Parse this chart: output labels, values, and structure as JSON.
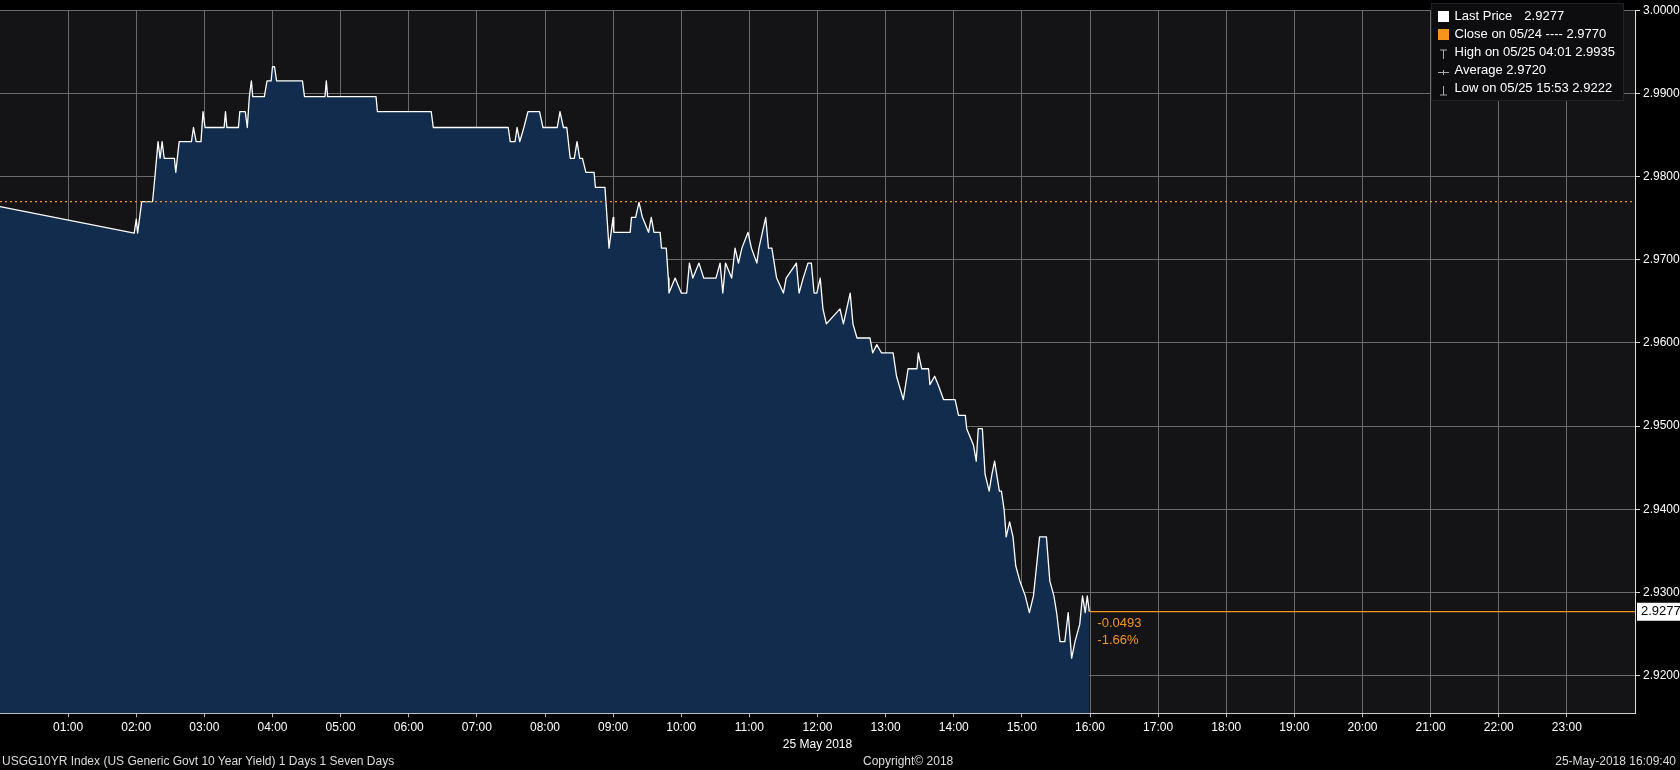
{
  "chart_data": {
    "type": "area",
    "title": "USGG10YR Index (US Generic Govt 10 Year Yield) 1 Days 1 Seven Days",
    "xlabel": "25 May 2018",
    "x": [
      0,
      1.97,
      2.0,
      2.02,
      2.08,
      2.24,
      2.28,
      2.32,
      2.35,
      2.38,
      2.41,
      2.56,
      2.58,
      2.63,
      2.81,
      2.84,
      2.88,
      2.95,
      2.98,
      3.01,
      3.29,
      3.31,
      3.33,
      3.5,
      3.52,
      3.6,
      3.63,
      3.66,
      3.69,
      3.71,
      3.88,
      3.92,
      3.98,
      4.0,
      4.03,
      4.06,
      4.44,
      4.47,
      4.77,
      4.79,
      4.81,
      5.52,
      5.54,
      6.33,
      6.36,
      7.46,
      7.49,
      7.56,
      7.59,
      7.63,
      7.69,
      7.75,
      7.92,
      7.97,
      8.18,
      8.22,
      8.27,
      8.32,
      8.37,
      8.43,
      8.47,
      8.51,
      8.55,
      8.6,
      8.72,
      8.74,
      8.88,
      8.91,
      8.94,
      9.0,
      9.01,
      9.25,
      9.27,
      9.33,
      9.38,
      9.43,
      9.52,
      9.56,
      9.6,
      9.69,
      9.71,
      9.78,
      9.81,
      9.82,
      9.91,
      10.0,
      10.08,
      10.12,
      10.17,
      10.26,
      10.33,
      10.51,
      10.57,
      10.61,
      10.65,
      10.74,
      10.79,
      10.84,
      10.89,
      10.98,
      11.03,
      11.11,
      11.14,
      11.24,
      11.28,
      11.33,
      11.4,
      11.5,
      11.54,
      11.69,
      11.73,
      11.79,
      11.86,
      11.91,
      11.95,
      11.99,
      12.04,
      12.08,
      12.13,
      12.33,
      12.38,
      12.48,
      12.52,
      12.58,
      12.77,
      12.81,
      12.87,
      12.94,
      13.11,
      13.16,
      13.26,
      13.33,
      13.46,
      13.48,
      13.53,
      13.63,
      13.65,
      13.72,
      13.77,
      13.85,
      14.02,
      14.07,
      14.17,
      14.19,
      14.29,
      14.33,
      14.36,
      14.42,
      14.46,
      14.52,
      14.56,
      14.6,
      14.63,
      14.67,
      14.7,
      14.74,
      14.77,
      14.82,
      14.87,
      14.91,
      14.97,
      15.05,
      15.11,
      15.17,
      15.26,
      15.36,
      15.41,
      15.47,
      15.51,
      15.56,
      15.63,
      15.68,
      15.73,
      15.78,
      15.85,
      15.89,
      15.93,
      15.96,
      15.99
    ],
    "series": [
      {
        "name": "Last Price",
        "color": "#ffffff",
        "values": [
          2.9764,
          2.9732,
          2.9749,
          2.9732,
          2.977,
          2.977,
          2.9805,
          2.9842,
          2.9822,
          2.9842,
          2.9822,
          2.9822,
          2.9805,
          2.9842,
          2.9842,
          2.9859,
          2.9842,
          2.9842,
          2.9878,
          2.9859,
          2.9859,
          2.9878,
          2.9859,
          2.9859,
          2.9878,
          2.9878,
          2.9859,
          2.9896,
          2.9915,
          2.9896,
          2.9896,
          2.9915,
          2.9915,
          2.9932,
          2.9932,
          2.9915,
          2.9915,
          2.9896,
          2.9896,
          2.9915,
          2.9896,
          2.9896,
          2.9878,
          2.9878,
          2.9859,
          2.9859,
          2.9842,
          2.9842,
          2.9859,
          2.9842,
          2.9859,
          2.9878,
          2.9878,
          2.9859,
          2.9859,
          2.9878,
          2.9859,
          2.9859,
          2.9822,
          2.9822,
          2.9842,
          2.9822,
          2.9822,
          2.9805,
          2.9805,
          2.9787,
          2.9787,
          2.9751,
          2.9714,
          2.9751,
          2.9733,
          2.9733,
          2.9751,
          2.9751,
          2.9769,
          2.9751,
          2.9733,
          2.9751,
          2.9733,
          2.9733,
          2.9714,
          2.9714,
          2.9678,
          2.966,
          2.9678,
          2.966,
          2.966,
          2.9696,
          2.9678,
          2.9696,
          2.9678,
          2.9678,
          2.9696,
          2.966,
          2.9696,
          2.9678,
          2.9714,
          2.9696,
          2.9714,
          2.9733,
          2.9714,
          2.9696,
          2.9714,
          2.9751,
          2.9714,
          2.9714,
          2.9678,
          2.966,
          2.9678,
          2.9696,
          2.966,
          2.9678,
          2.9696,
          2.9696,
          2.966,
          2.966,
          2.9678,
          2.9641,
          2.9623,
          2.9641,
          2.9623,
          2.966,
          2.9623,
          2.9606,
          2.9606,
          2.9588,
          2.9598,
          2.9588,
          2.9588,
          2.956,
          2.9532,
          2.9569,
          2.9569,
          2.9588,
          2.9569,
          2.9569,
          2.955,
          2.956,
          2.955,
          2.9532,
          2.9532,
          2.9513,
          2.9513,
          2.9497,
          2.9477,
          2.9458,
          2.9497,
          2.9497,
          2.9442,
          2.9422,
          2.9442,
          2.9458,
          2.9442,
          2.9422,
          2.9422,
          2.9399,
          2.9367,
          2.9385,
          2.9367,
          2.9332,
          2.9314,
          2.9296,
          2.9276,
          2.9296,
          2.9367,
          2.9367,
          2.9314,
          2.9296,
          2.9276,
          2.9241,
          2.9241,
          2.9276,
          2.9221,
          2.9241,
          2.9262,
          2.9296,
          2.9276,
          2.9296,
          2.9277
        ]
      }
    ],
    "xlim": [
      0,
      24
    ],
    "xticks": [
      {
        "value": 1,
        "label": "01:00"
      },
      {
        "value": 2,
        "label": "02:00"
      },
      {
        "value": 3,
        "label": "03:00"
      },
      {
        "value": 4,
        "label": "04:00"
      },
      {
        "value": 5,
        "label": "05:00"
      },
      {
        "value": 6,
        "label": "06:00"
      },
      {
        "value": 7,
        "label": "07:00"
      },
      {
        "value": 8,
        "label": "08:00"
      },
      {
        "value": 9,
        "label": "09:00"
      },
      {
        "value": 10,
        "label": "10:00"
      },
      {
        "value": 11,
        "label": "11:00"
      },
      {
        "value": 12,
        "label": "12:00"
      },
      {
        "value": 13,
        "label": "13:00"
      },
      {
        "value": 14,
        "label": "14:00"
      },
      {
        "value": 15,
        "label": "15:00"
      },
      {
        "value": 16,
        "label": "16:00"
      },
      {
        "value": 17,
        "label": "17:00"
      },
      {
        "value": 18,
        "label": "18:00"
      },
      {
        "value": 19,
        "label": "19:00"
      },
      {
        "value": 20,
        "label": "20:00"
      },
      {
        "value": 21,
        "label": "21:00"
      },
      {
        "value": 22,
        "label": "22:00"
      },
      {
        "value": 23,
        "label": "23:00"
      }
    ],
    "ylim": [
      2.9155,
      3.0
    ],
    "yticks": [
      {
        "value": 2.92,
        "label": "2.9200"
      },
      {
        "value": 2.93,
        "label": "2.9300"
      },
      {
        "value": 2.94,
        "label": "2.9400"
      },
      {
        "value": 2.95,
        "label": "2.9500"
      },
      {
        "value": 2.96,
        "label": "2.9600"
      },
      {
        "value": 2.97,
        "label": "2.9700"
      },
      {
        "value": 2.98,
        "label": "2.9800"
      },
      {
        "value": 2.99,
        "label": "2.9900"
      },
      {
        "value": 3.0,
        "label": "3.0000"
      }
    ],
    "ref_lines": [
      {
        "axis": "y",
        "value": 2.977,
        "label": "Close on 05/24 ---- 2.9770",
        "color": "#f7941d",
        "line_style": "dotted"
      },
      {
        "axis": "y",
        "value": 2.9277,
        "label": "2.9277",
        "color": "#f7941d",
        "line_style": "solid"
      }
    ],
    "annotations": [
      "2.9277",
      "High on 05/25 04:01 2.9935",
      "Average 2.9720",
      "Low on 05/25 15:53 2.9222",
      {
        "text": "-0.0493",
        "x": 15.99,
        "y": 2.9277
      },
      {
        "text": "-1.66%",
        "x": 15.99,
        "y": 2.9277
      },
      "Copyright© 2018",
      "25-May-2018 16:09:40"
    ],
    "grid": true,
    "legend": "top right",
    "marker": "none",
    "line_style": "solid"
  }
}
